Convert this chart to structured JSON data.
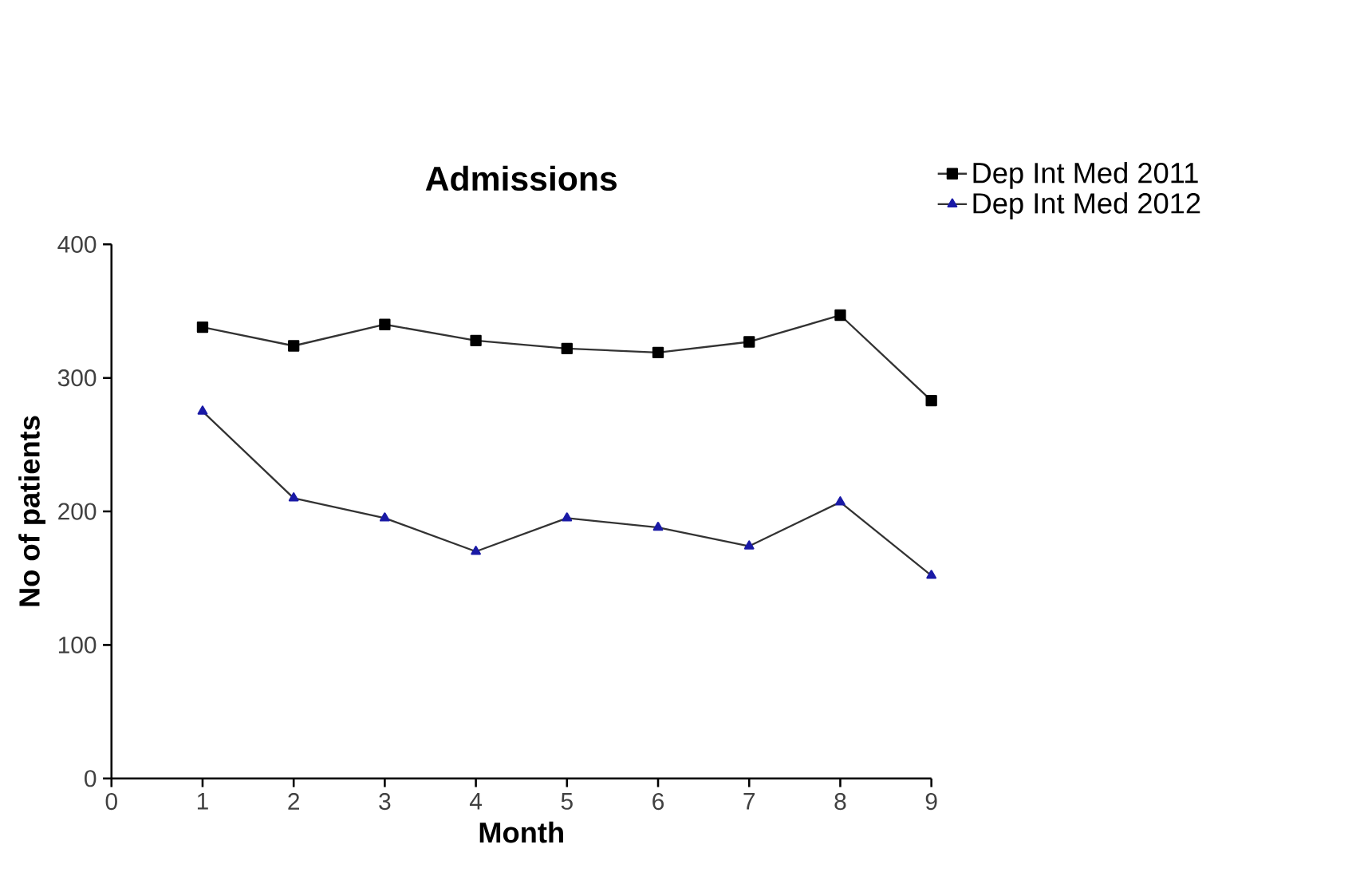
{
  "chart_data": {
    "type": "line",
    "title": "Admissions",
    "xlabel": "Month",
    "ylabel": "No of patients",
    "x": [
      1,
      2,
      3,
      4,
      5,
      6,
      7,
      8,
      9
    ],
    "series": [
      {
        "name": "Dep Int Med 2011",
        "color": "#000000",
        "marker": "square",
        "values": [
          338,
          324,
          340,
          328,
          322,
          319,
          327,
          347,
          283
        ]
      },
      {
        "name": "Dep Int Med 2012",
        "color": "#1a1aa6",
        "marker": "triangle",
        "values": [
          275,
          210,
          195,
          170,
          195,
          188,
          174,
          207,
          152
        ]
      }
    ],
    "xlim": [
      0,
      9
    ],
    "xticks": [
      0,
      1,
      2,
      3,
      4,
      5,
      6,
      7,
      8,
      9
    ],
    "ylim": [
      0,
      400
    ],
    "yticks": [
      0,
      100,
      200,
      300,
      400
    ],
    "grid": false,
    "legend": "top right",
    "line_style": "solid"
  }
}
